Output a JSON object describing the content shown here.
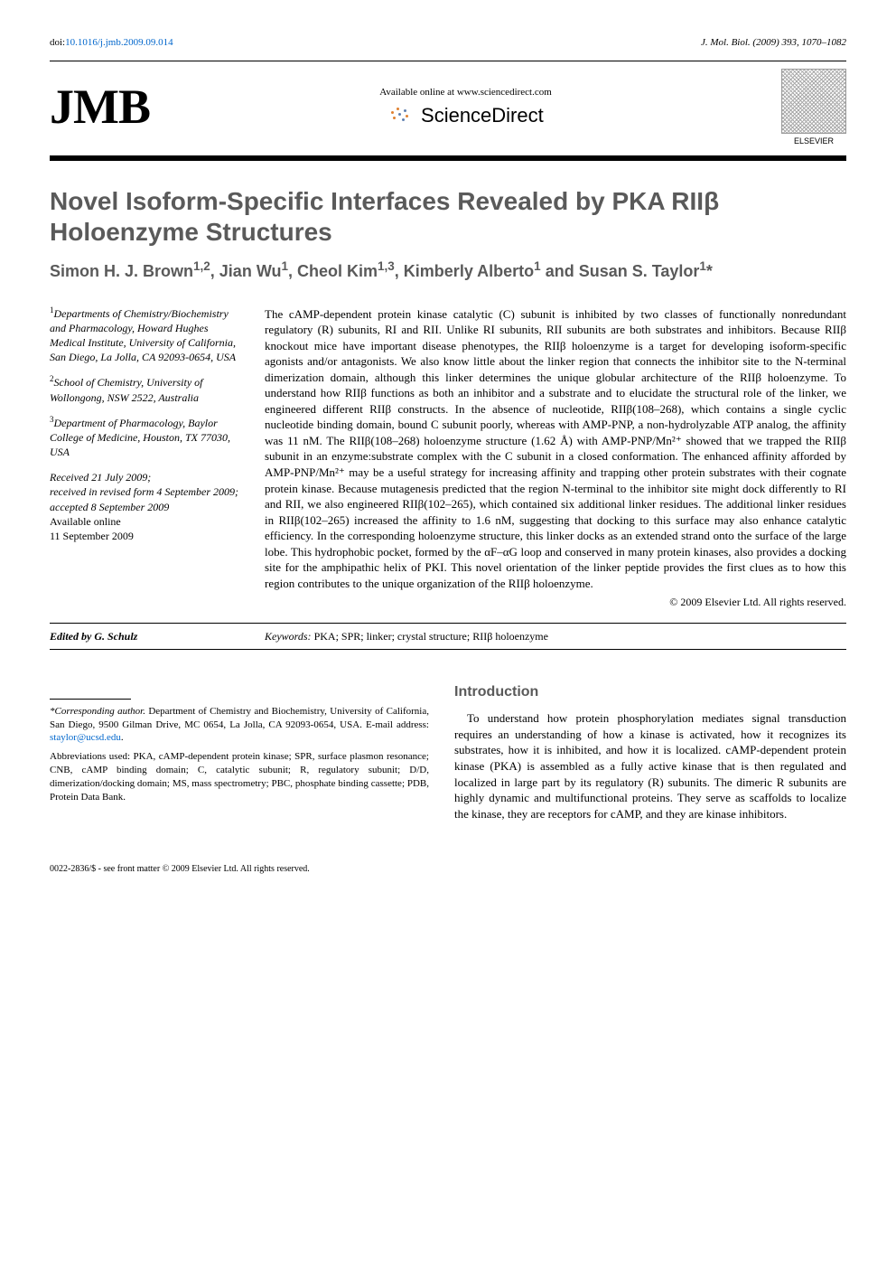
{
  "top": {
    "doi_prefix": "doi:",
    "doi": "10.1016/j.jmb.2009.09.014",
    "journal_citation": "J. Mol. Biol. (2009) 393, 1070–1082"
  },
  "header": {
    "jmb_logo": "JMB",
    "sd_available": "Available online at www.sciencedirect.com",
    "sd_brand": "ScienceDirect",
    "elsevier": "ELSEVIER"
  },
  "title": "Novel Isoform-Specific Interfaces Revealed by PKA RIIβ Holoenzyme Structures",
  "authors_html": "Simon H. J. Brown<sup>1,2</sup>, Jian Wu<sup>1</sup>, Cheol Kim<sup>1,3</sup>, Kimberly Alberto<sup>1</sup> and Susan S. Taylor<sup>1</sup>*",
  "affiliations": [
    {
      "sup": "1",
      "text": "Departments of Chemistry/Biochemistry and Pharmacology, Howard Hughes Medical Institute, University of California, San Diego, La Jolla, CA 92093-0654, USA"
    },
    {
      "sup": "2",
      "text": "School of Chemistry, University of Wollongong, NSW 2522, Australia"
    },
    {
      "sup": "3",
      "text": "Department of Pharmacology, Baylor College of Medicine, Houston, TX 77030, USA"
    }
  ],
  "history": {
    "received": "Received 21 July 2009;",
    "revised": "received in revised form 4 September 2009;",
    "accepted": "accepted 8 September 2009",
    "online_label": "Available online",
    "online_date": "11 September 2009"
  },
  "abstract": "The cAMP-dependent protein kinase catalytic (C) subunit is inhibited by two classes of functionally nonredundant regulatory (R) subunits, RI and RII. Unlike RI subunits, RII subunits are both substrates and inhibitors. Because RIIβ knockout mice have important disease phenotypes, the RIIβ holoenzyme is a target for developing isoform-specific agonists and/or antagonists. We also know little about the linker region that connects the inhibitor site to the N-terminal dimerization domain, although this linker determines the unique globular architecture of the RIIβ holoenzyme. To understand how RIIβ functions as both an inhibitor and a substrate and to elucidate the structural role of the linker, we engineered different RIIβ constructs. In the absence of nucleotide, RIIβ(108–268), which contains a single cyclic nucleotide binding domain, bound C subunit poorly, whereas with AMP-PNP, a non-hydrolyzable ATP analog, the affinity was 11 nM. The RIIβ(108–268) holoenzyme structure (1.62 Å) with AMP-PNP/Mn²⁺ showed that we trapped the RIIβ subunit in an enzyme:substrate complex with the C subunit in a closed conformation. The enhanced affinity afforded by AMP-PNP/Mn²⁺ may be a useful strategy for increasing affinity and trapping other protein substrates with their cognate protein kinase. Because mutagenesis predicted that the region N-terminal to the inhibitor site might dock differently to RI and RII, we also engineered RIIβ(102–265), which contained six additional linker residues. The additional linker residues in RIIβ(102–265) increased the affinity to 1.6 nM, suggesting that docking to this surface may also enhance catalytic efficiency. In the corresponding holoenzyme structure, this linker docks as an extended strand onto the surface of the large lobe. This hydrophobic pocket, formed by the αF–αG loop and conserved in many protein kinases, also provides a docking site for the amphipathic helix of PKI. This novel orientation of the linker peptide provides the first clues as to how this region contributes to the unique organization of the RIIβ holoenzyme.",
  "copyright": "© 2009 Elsevier Ltd. All rights reserved.",
  "edited_by": "Edited by G. Schulz",
  "keywords_label": "Keywords:",
  "keywords": "PKA; SPR; linker; crystal structure; RIIβ holoenzyme",
  "footnotes": {
    "corresponding_label": "*Corresponding author.",
    "corresponding_text": " Department of Chemistry and Biochemistry, University of California, San Diego, 9500 Gilman Drive, MC 0654, La Jolla, CA 92093-0654, USA. E-mail address: ",
    "email": "staylor@ucsd.edu",
    "period": ".",
    "abbrev": "Abbreviations used: PKA, cAMP-dependent protein kinase; SPR, surface plasmon resonance; CNB, cAMP binding domain; C, catalytic subunit; R, regulatory subunit; D/D, dimerization/docking domain; MS, mass spectrometry; PBC, phosphate binding cassette; PDB, Protein Data Bank."
  },
  "intro": {
    "heading": "Introduction",
    "para": "To understand how protein phosphorylation mediates signal transduction requires an understanding of how a kinase is activated, how it recognizes its substrates, how it is inhibited, and how it is localized. cAMP-dependent protein kinase (PKA) is assembled as a fully active kinase that is then regulated and localized in large part by its regulatory (R) subunits. The dimeric R subunits are highly dynamic and multifunctional proteins. They serve as scaffolds to localize the kinase, they are receptors for cAMP, and they are kinase inhibitors."
  },
  "front_matter": "0022-2836/$ - see front matter © 2009 Elsevier Ltd. All rights reserved.",
  "colors": {
    "link": "#0066cc",
    "heading_gray": "#5a5a5a",
    "sd_orange": "#e08030",
    "sd_blue": "#6080b0"
  }
}
